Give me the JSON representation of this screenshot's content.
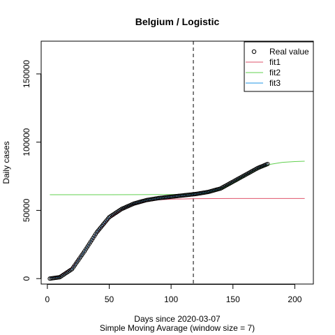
{
  "chart_data": {
    "type": "scatter",
    "title": "Belgium / Logistic",
    "xlabel": "Days since 2020-03-07",
    "subtitle": "Simple Moving Avarage (window size = 7)",
    "ylabel": "Daily cases",
    "xlim": [
      -5,
      215
    ],
    "ylim": [
      -4000,
      174000
    ],
    "x_ticks": [
      0,
      50,
      100,
      150,
      200
    ],
    "y_ticks": [
      0,
      50000,
      100000,
      150000
    ],
    "x_tick_labels": [
      "0",
      "50",
      "100",
      "150",
      "200"
    ],
    "y_tick_labels": [
      "0",
      "50000",
      "100000",
      "150000"
    ],
    "vline_x": 118,
    "grid": false,
    "legend_position": "top-right",
    "colors": {
      "points": "#000000",
      "fit1": "#DF536B",
      "fit2": "#61D04F",
      "fit3": "#2297E6",
      "vline": "#000000"
    },
    "legend": [
      "Real value",
      "fit1",
      "fit2",
      "fit3"
    ],
    "real_value": {
      "x_start": 2,
      "x_end": 178,
      "points": [
        [
          2,
          0
        ],
        [
          10,
          1000
        ],
        [
          20,
          7000
        ],
        [
          30,
          20000
        ],
        [
          40,
          34000
        ],
        [
          50,
          45000
        ],
        [
          60,
          51000
        ],
        [
          70,
          55000
        ],
        [
          80,
          57500
        ],
        [
          90,
          59000
        ],
        [
          100,
          60000
        ],
        [
          110,
          61000
        ],
        [
          120,
          62000
        ],
        [
          130,
          63500
        ],
        [
          140,
          66000
        ],
        [
          150,
          71000
        ],
        [
          160,
          76000
        ],
        [
          170,
          81000
        ],
        [
          178,
          84000
        ]
      ]
    },
    "series": [
      {
        "name": "fit1",
        "points": [
          [
            2,
            500
          ],
          [
            10,
            2000
          ],
          [
            20,
            8000
          ],
          [
            30,
            20000
          ],
          [
            40,
            33500
          ],
          [
            50,
            44000
          ],
          [
            60,
            50500
          ],
          [
            70,
            54500
          ],
          [
            80,
            56500
          ],
          [
            90,
            57700
          ],
          [
            100,
            58200
          ],
          [
            120,
            58600
          ],
          [
            150,
            58700
          ],
          [
            180,
            58700
          ],
          [
            208,
            58700
          ]
        ]
      },
      {
        "name": "fit2",
        "points": [
          [
            2,
            61500
          ],
          [
            50,
            61500
          ],
          [
            100,
            61600
          ],
          [
            120,
            62000
          ],
          [
            130,
            63000
          ],
          [
            140,
            65500
          ],
          [
            150,
            70000
          ],
          [
            160,
            75500
          ],
          [
            170,
            80500
          ],
          [
            180,
            83700
          ],
          [
            190,
            85200
          ],
          [
            200,
            85800
          ],
          [
            208,
            86000
          ]
        ]
      },
      {
        "name": "fit3",
        "points": [
          [
            2,
            500
          ],
          [
            10,
            1000
          ],
          [
            20,
            7000
          ],
          [
            30,
            20000
          ],
          [
            40,
            34000
          ],
          [
            50,
            45000
          ],
          [
            60,
            51000
          ],
          [
            70,
            55000
          ],
          [
            80,
            57500
          ],
          [
            90,
            59000
          ],
          [
            100,
            60000
          ],
          [
            110,
            61000
          ],
          [
            120,
            62000
          ],
          [
            130,
            63500
          ],
          [
            140,
            66000
          ],
          [
            150,
            71000
          ],
          [
            160,
            76000
          ],
          [
            170,
            81000
          ],
          [
            178,
            84000
          ]
        ]
      }
    ]
  }
}
